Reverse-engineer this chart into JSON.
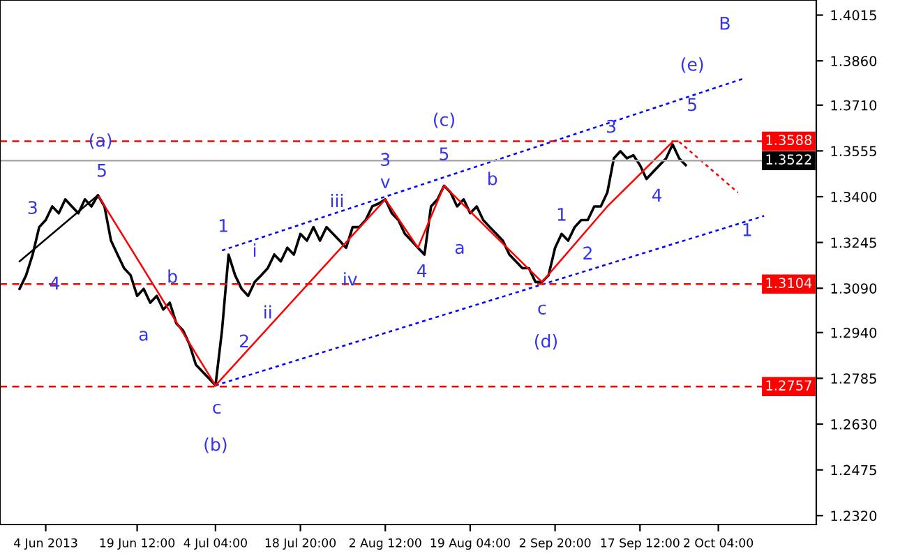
{
  "chart_data": {
    "type": "line",
    "categories": [
      null,
      null,
      null,
      null,
      "4 Jun 2013",
      null,
      null,
      null,
      null,
      null,
      null,
      null,
      null,
      null,
      null,
      null,
      null,
      null,
      "19 Jun 12:00",
      null,
      null,
      null,
      null,
      null,
      null,
      null,
      null,
      null,
      null,
      null,
      "4 Jul 04:00",
      null,
      null,
      null,
      null,
      null,
      null,
      null,
      null,
      null,
      null,
      null,
      null,
      "18 Jul 20:00",
      null,
      null,
      null,
      null,
      null,
      null,
      null,
      null,
      null,
      null,
      null,
      null,
      "2 Aug 12:00",
      null,
      null,
      null,
      null,
      null,
      null,
      null,
      null,
      null,
      null,
      null,
      null,
      "19 Aug 04:00",
      null,
      null,
      null,
      null,
      null,
      null,
      null,
      null,
      null,
      null,
      null,
      null,
      "2 Sep 20:00",
      null,
      null,
      null,
      null,
      null,
      null,
      null,
      null,
      null,
      null,
      null,
      null,
      "17 Sep 12:00",
      null,
      null,
      null,
      null,
      null,
      null,
      null,
      null,
      null,
      null,
      null,
      "2 Oct 04:00",
      null,
      null,
      null,
      null,
      null,
      null,
      null
    ],
    "series": [
      {
        "color": "#000000",
        "values": [
          1.3088,
          1.3134,
          1.3204,
          1.3297,
          1.3321,
          1.3367,
          1.3344,
          1.3391,
          1.3367,
          1.3344,
          1.3391,
          1.3367,
          1.3405,
          1.3367,
          1.3251,
          1.3204,
          1.3158,
          1.3134,
          1.3064,
          1.3088,
          1.3041,
          1.3064,
          1.3018,
          1.3041,
          1.2971,
          1.2948,
          1.2901,
          1.2831,
          1.2808,
          1.2785,
          1.2761,
          1.2948,
          1.3204,
          1.3134,
          1.3088,
          1.3064,
          1.3111,
          1.3134,
          1.3158,
          1.3204,
          1.3181,
          1.3227,
          1.3204,
          1.3274,
          1.3251,
          1.3297,
          1.3251,
          1.3297,
          1.3274,
          1.3251,
          1.3227,
          1.3297,
          1.3297,
          1.3321,
          1.3367,
          1.3377,
          1.3391,
          1.3344,
          1.3321,
          1.3274,
          1.3251,
          1.3227,
          1.3204,
          1.3367,
          1.3391,
          1.3437,
          1.3414,
          1.3367,
          1.3391,
          1.3344,
          1.3367,
          1.3321,
          1.3297,
          1.3274,
          1.3251,
          1.3204,
          1.3181,
          1.3158,
          1.3158,
          1.3111,
          1.3111,
          1.3134,
          1.3227,
          1.3274,
          1.3251,
          1.3297,
          1.3321,
          1.3321,
          1.3367,
          1.3367,
          1.3414,
          1.353,
          1.3554,
          1.353,
          1.354,
          1.3507,
          1.346,
          1.3484,
          1.3507,
          1.353,
          1.3577,
          1.353,
          1.3507,
          null,
          null,
          null,
          null,
          null,
          null,
          null,
          null,
          null,
          null,
          null,
          null
        ]
      },
      {
        "color": "#0000ff",
        "line_style": "dotted",
        "values": [
          null,
          null,
          null,
          null,
          null,
          null,
          null,
          null,
          null,
          null,
          null,
          null,
          null,
          null,
          null,
          null,
          null,
          null,
          null,
          null,
          null,
          null,
          null,
          null,
          null,
          null,
          null,
          null,
          null,
          null,
          null,
          1.3218,
          null,
          null,
          null,
          null,
          null,
          null,
          null,
          null,
          null,
          null,
          null,
          null,
          null,
          null,
          null,
          null,
          null,
          null,
          null,
          null,
          null,
          null,
          null,
          null,
          null,
          null,
          null,
          null,
          null,
          null,
          null,
          null,
          null,
          null,
          null,
          null,
          null,
          null,
          null,
          null,
          null,
          null,
          null,
          null,
          null,
          null,
          null,
          null,
          null,
          null,
          null,
          null,
          null,
          null,
          null,
          null,
          null,
          null,
          null,
          null,
          null,
          null,
          null,
          null,
          null,
          null,
          null,
          null,
          null,
          null,
          null,
          null,
          null,
          null,
          null,
          null,
          null,
          null,
          null,
          1.3801,
          null,
          null,
          null
        ]
      },
      {
        "color": "#0000ff",
        "line_style": "dotted",
        "values": [
          null,
          null,
          null,
          null,
          null,
          null,
          null,
          null,
          null,
          null,
          null,
          null,
          null,
          null,
          null,
          null,
          null,
          null,
          null,
          null,
          null,
          null,
          null,
          null,
          null,
          null,
          null,
          null,
          null,
          null,
          1.2761,
          null,
          null,
          null,
          null,
          null,
          null,
          null,
          null,
          null,
          null,
          null,
          null,
          null,
          null,
          null,
          null,
          null,
          null,
          null,
          null,
          null,
          null,
          null,
          null,
          null,
          null,
          null,
          null,
          null,
          null,
          null,
          null,
          null,
          null,
          null,
          null,
          null,
          null,
          null,
          null,
          null,
          null,
          null,
          null,
          null,
          null,
          null,
          null,
          null,
          null,
          null,
          null,
          null,
          null,
          null,
          null,
          null,
          null,
          null,
          null,
          null,
          null,
          null,
          null,
          null,
          null,
          null,
          null,
          null,
          null,
          null,
          null,
          null,
          null,
          null,
          null,
          null,
          null,
          null,
          null,
          null,
          null,
          null,
          1.3335
        ]
      },
      {
        "color": "#ff0000",
        "line_style": "dotted",
        "values": [
          null,
          null,
          null,
          null,
          null,
          null,
          null,
          null,
          null,
          null,
          null,
          null,
          null,
          null,
          null,
          null,
          null,
          null,
          null,
          null,
          null,
          null,
          null,
          null,
          null,
          null,
          null,
          null,
          null,
          null,
          null,
          null,
          null,
          null,
          null,
          null,
          null,
          null,
          null,
          null,
          null,
          null,
          null,
          null,
          null,
          null,
          null,
          null,
          null,
          null,
          null,
          null,
          null,
          null,
          null,
          null,
          null,
          null,
          null,
          null,
          null,
          null,
          null,
          null,
          null,
          null,
          null,
          null,
          null,
          null,
          null,
          null,
          null,
          null,
          null,
          null,
          null,
          null,
          null,
          null,
          null,
          null,
          null,
          null,
          null,
          null,
          null,
          null,
          null,
          null,
          null,
          null,
          null,
          null,
          null,
          null,
          null,
          null,
          null,
          null,
          null,
          1.3586,
          null,
          null,
          null,
          null,
          null,
          null,
          null,
          null,
          1.3414,
          null,
          null,
          null,
          null
        ]
      },
      {
        "color": "#ff0000",
        "values": [
          null,
          null,
          null,
          null,
          null,
          null,
          null,
          null,
          null,
          null,
          null,
          null,
          1.3405,
          null,
          null,
          null,
          null,
          null,
          null,
          null,
          null,
          null,
          null,
          null,
          null,
          null,
          null,
          null,
          null,
          null,
          1.2761,
          null,
          null,
          null,
          null,
          null,
          null,
          null,
          null,
          null,
          null,
          null,
          null,
          null,
          null,
          null,
          null,
          null,
          null,
          null,
          null,
          null,
          null,
          null,
          null,
          null,
          1.3391,
          null,
          null,
          null,
          null,
          1.3227,
          null,
          null,
          null,
          1.3437,
          null,
          null,
          null,
          null,
          null,
          null,
          null,
          null,
          null,
          null,
          null,
          null,
          null,
          null,
          1.3111,
          null,
          null,
          null,
          null,
          null,
          null,
          null,
          null,
          null,
          1.3367,
          null,
          null,
          null,
          null,
          null,
          null,
          null,
          null,
          null,
          1.3586,
          null,
          null,
          null,
          null,
          null,
          null,
          null,
          null,
          null,
          null,
          null,
          null,
          null,
          null
        ]
      },
      {
        "color": "#000000",
        "values": [
          1.3181,
          null,
          null,
          null,
          null,
          null,
          null,
          null,
          null,
          null,
          null,
          null,
          1.3405,
          null,
          null,
          null,
          null,
          null,
          null,
          null,
          null,
          null,
          null,
          null,
          null,
          null,
          null,
          null,
          null,
          null,
          null,
          null,
          null,
          null,
          null,
          null,
          null,
          null,
          null,
          null,
          null,
          null,
          null,
          null,
          null,
          null,
          null,
          null,
          null,
          null,
          null,
          null,
          null,
          null,
          null,
          null,
          null,
          null,
          null,
          null,
          null,
          null,
          null,
          null,
          null,
          null,
          null,
          null,
          null,
          null,
          null,
          null,
          null,
          null,
          null,
          null,
          null,
          null,
          null,
          null,
          null,
          null,
          null,
          null,
          null,
          null,
          null,
          null,
          null,
          null,
          null,
          null,
          null,
          null,
          null,
          null,
          null,
          null,
          null,
          null,
          null,
          null,
          null,
          null,
          null,
          null,
          null,
          null,
          null,
          null,
          null,
          null,
          null,
          null,
          null
        ]
      }
    ],
    "ylim": [
      1.229,
      1.4066
    ],
    "yticks": [
      1.4015,
      {
        "value": 1.386,
        "label": "1.3860"
      },
      {
        "value": 1.371,
        "label": "1.3710"
      },
      1.3555,
      {
        "value": 1.34,
        "label": "1.3400"
      },
      1.3245,
      {
        "value": 1.309,
        "label": "1.3090"
      },
      {
        "value": 1.294,
        "label": "1.2940"
      },
      1.2785,
      {
        "value": 1.263,
        "label": "1.2630"
      },
      1.2475,
      {
        "value": 1.232,
        "label": "1.2320"
      }
    ],
    "ref_lines": [
      {
        "axis": "y",
        "value": 1.3588,
        "label": "1.3588",
        "color": "#ff0000",
        "line_style": "dashed"
      },
      {
        "axis": "y",
        "value": 1.3522,
        "label": "1.3522",
        "color": "#aaaaaa",
        "line_style": "solid"
      },
      {
        "axis": "y",
        "value": 1.3104,
        "label": "1.3104",
        "color": "#ff0000",
        "line_style": "dashed"
      },
      {
        "axis": "y",
        "value": 1.2757,
        "label": "1.2757",
        "color": "#ff0000",
        "line_style": "dashed"
      }
    ],
    "annotations": [
      "3",
      "4",
      "(a)",
      "5",
      "a",
      "b",
      "c",
      "(b)",
      "1",
      "2",
      "i",
      "ii",
      "iii",
      "iv",
      "v",
      "3",
      "4",
      "(c)",
      "5",
      "a",
      "b",
      "c",
      "(d)",
      "1",
      "2",
      "3",
      "4",
      "5",
      "(e)",
      "B",
      "1"
    ],
    "grid": false,
    "legend": false
  }
}
